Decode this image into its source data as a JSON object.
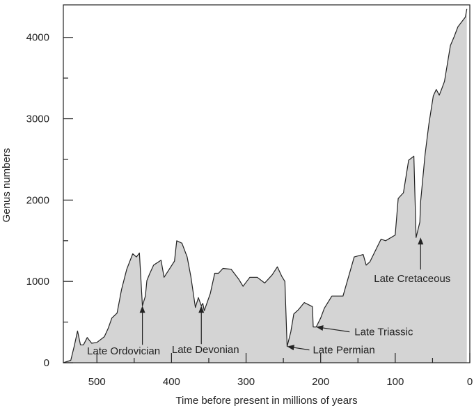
{
  "chart_data": {
    "type": "area",
    "title": "",
    "xlabel": "Time before present in millions of years",
    "ylabel": "Genus numbers",
    "xlim": [
      545,
      0
    ],
    "ylim": [
      0,
      4400
    ],
    "x_ticks": [
      500,
      400,
      300,
      200,
      100,
      0
    ],
    "x_minor_ticks": [
      450,
      350,
      250,
      150,
      50
    ],
    "y_ticks": [
      0,
      1000,
      2000,
      3000,
      4000
    ],
    "y_minor_ticks": [
      500,
      1500,
      2500,
      3500
    ],
    "grid": false,
    "fill_color": "#d4d4d4",
    "line_color": "#222222",
    "series": [
      {
        "x": [
          545,
          535,
          530,
          526,
          522,
          518,
          513,
          507,
          500,
          490,
          485,
          480,
          473,
          467,
          460,
          452,
          447,
          443,
          439,
          435,
          433,
          429,
          424,
          414,
          410,
          403,
          396,
          393,
          386,
          379,
          374,
          368,
          364,
          360,
          358,
          356,
          348,
          342,
          337,
          331,
          320,
          310,
          304,
          295,
          285,
          275,
          265,
          258,
          252,
          248,
          245,
          240,
          236,
          230,
          222,
          211,
          210,
          206,
          200,
          195,
          185,
          170,
          155,
          143,
          139,
          134,
          119,
          113,
          100,
          96,
          89,
          82,
          75,
          72,
          67,
          66,
          60,
          55,
          49,
          45,
          41,
          38,
          34,
          26,
          21,
          16,
          6,
          4
        ],
        "y": [
          0,
          30,
          220,
          390,
          220,
          220,
          310,
          240,
          250,
          320,
          420,
          550,
          610,
          900,
          1150,
          1340,
          1300,
          1350,
          700,
          820,
          1010,
          1100,
          1200,
          1260,
          1050,
          1150,
          1250,
          1500,
          1470,
          1300,
          1060,
          680,
          800,
          700,
          730,
          640,
          850,
          1100,
          1100,
          1160,
          1150,
          1030,
          940,
          1050,
          1050,
          980,
          1080,
          1180,
          1060,
          1000,
          200,
          380,
          600,
          650,
          740,
          690,
          440,
          440,
          550,
          670,
          820,
          820,
          1300,
          1330,
          1200,
          1240,
          1520,
          1500,
          1570,
          2020,
          2090,
          2490,
          2540,
          1540,
          1730,
          1980,
          2560,
          2930,
          3280,
          3360,
          3290,
          3360,
          3460,
          3900,
          4010,
          4130,
          4250,
          4350
        ]
      }
    ],
    "annotations": [
      {
        "text": "Late Ordovician",
        "x": 439,
        "y": 700
      },
      {
        "text": "Late Devonian",
        "x": 360,
        "y": 700
      },
      {
        "text": "Late Permian",
        "x": 245,
        "y": 200
      },
      {
        "text": "Late Triassic",
        "x": 206,
        "y": 440
      },
      {
        "text": "Late Cretaceous",
        "x": 66,
        "y": 1540
      }
    ]
  }
}
